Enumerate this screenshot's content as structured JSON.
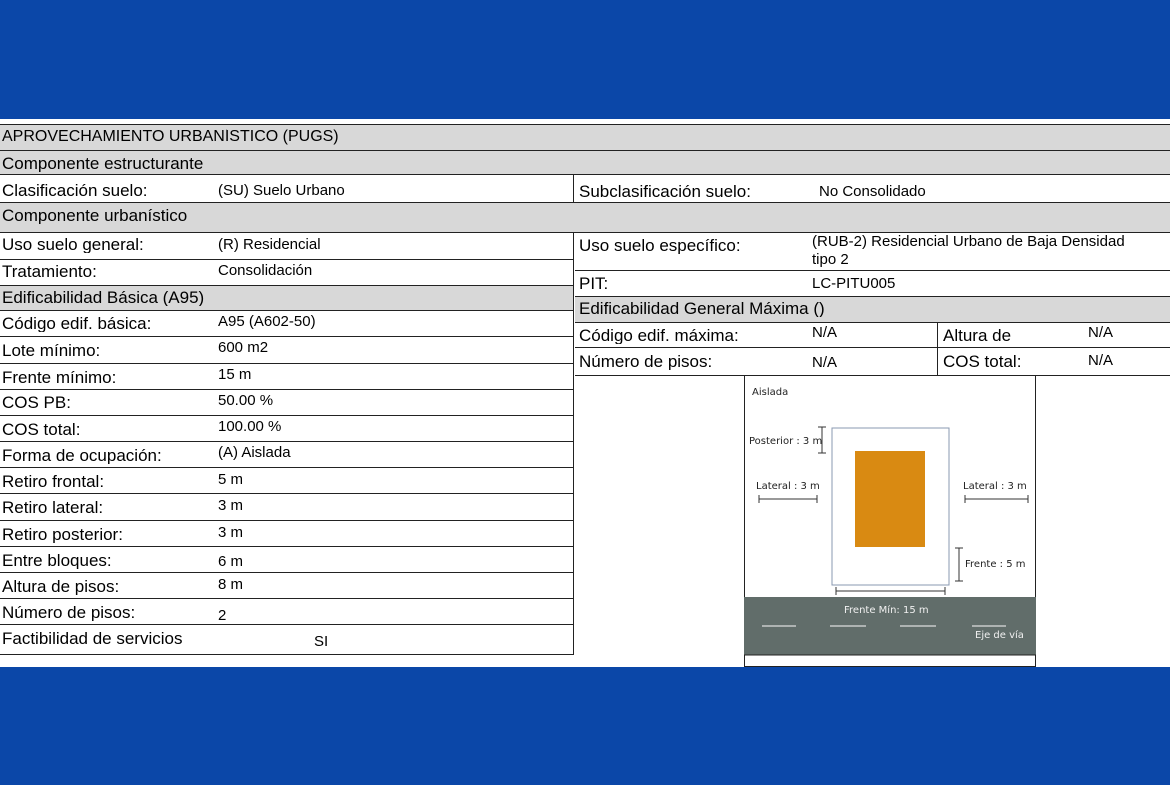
{
  "section_title": "APROVECHAMIENTO URBANÍSTICO (PUGS)",
  "componente_estructurante": {
    "title": "Componente  estructurante",
    "clasificacion_label": "Clasificación suelo:",
    "clasificacion_value": "(SU) Suelo Urbano",
    "subclasificacion_label": "Subclasificación suelo:",
    "subclasificacion_value": "No Consolidado"
  },
  "componente_urbanistico": {
    "title": "Componente  urbanístico",
    "uso_general_label": "Uso suelo general:",
    "uso_general_value": "(R) Residencial",
    "uso_especifico_label": "Uso suelo específico:",
    "uso_especifico_value_line1": "(RUB-2) Residencial Urbano de Baja Densidad",
    "uso_especifico_value_line2": "tipo 2",
    "tratamiento_label": "Tratamiento:",
    "tratamiento_value": "Consolidación",
    "pit_label": "PIT:",
    "pit_value": "LC-PITU005"
  },
  "edificabilidad_basica": {
    "title": "Edificabilidad Básica (A95)",
    "rows": [
      {
        "label": "Código edif. básica:",
        "value": "A95 (A602-50)"
      },
      {
        "label": "Lote mínimo:",
        "value": "600 m2"
      },
      {
        "label": "Frente mínimo:",
        "value": "15 m"
      },
      {
        "label": "COS PB:",
        "value": "50.00 %"
      },
      {
        "label": "COS total:",
        "value": "100.00 %"
      },
      {
        "label": "Forma de ocupación:",
        "value": "(A) Aislada"
      },
      {
        "label": "Retiro frontal:",
        "value": "5 m"
      },
      {
        "label": "Retiro lateral:",
        "value": "3 m"
      },
      {
        "label": "Retiro posterior:",
        "value": "3 m"
      },
      {
        "label": "Entre bloques:",
        "value": "6 m"
      },
      {
        "label": "Altura de pisos:",
        "value": "8 m"
      },
      {
        "label": "Número de pisos:",
        "value": "2"
      },
      {
        "label": "Factibilidad de servicios",
        "value": "SI"
      }
    ]
  },
  "edificabilidad_maxima": {
    "title": "Edificabilidad General Máxima ()",
    "codigo_label": "Código edif. máxima:",
    "codigo_value": "N/A",
    "altura_label": "Altura de",
    "altura_value": "N/A",
    "pisos_label": "Número de pisos:",
    "pisos_value": "N/A",
    "cos_label": "COS total:",
    "cos_value": "N/A"
  },
  "diagram": {
    "title": "Aislada",
    "posterior": "Posterior : 3 m",
    "lateral_left": "Lateral : 3 m",
    "lateral_right": "Lateral : 3 m",
    "frente": "Frente : 5 m",
    "frente_min": "Frente Mín: 15 m",
    "eje": "Eje de vía",
    "building_color": "#d98a12",
    "road_color": "#616d6a"
  },
  "colors": {
    "frame_blue": "#0b47a8",
    "header_gray": "#d8d8d8"
  }
}
